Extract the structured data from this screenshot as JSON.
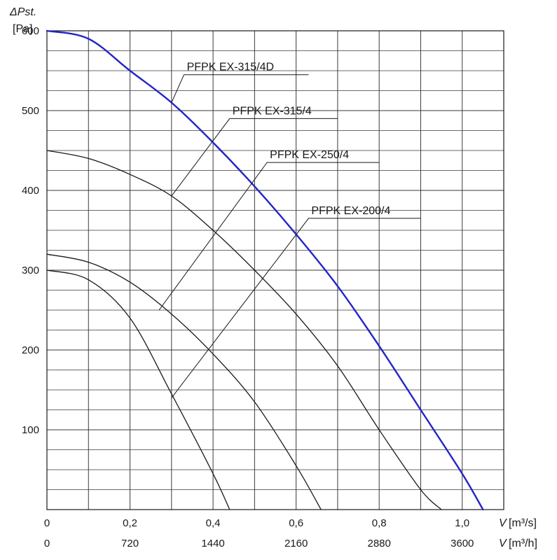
{
  "chart_data": {
    "type": "line",
    "ylabel_symbol": "ΔPst.",
    "ylabel_unit": "[Pa]",
    "xlabel_symbol": "V",
    "xlabel_unit_m3s": "[m³/s]",
    "xlabel_unit_m3h": "[m³/h]",
    "xlim": [
      0,
      1.1
    ],
    "ylim": [
      0,
      600
    ],
    "grid": true,
    "x_ticks_m3s": [
      {
        "value": 0,
        "label": "0"
      },
      {
        "value": 0.2,
        "label": "0,2"
      },
      {
        "value": 0.4,
        "label": "0,4"
      },
      {
        "value": 0.6,
        "label": "0,6"
      },
      {
        "value": 0.8,
        "label": "0,8"
      },
      {
        "value": 1.0,
        "label": "1,0"
      }
    ],
    "x_ticks_m3h": [
      {
        "value": 0,
        "label": "0"
      },
      {
        "value": 0.2,
        "label": "720"
      },
      {
        "value": 0.4,
        "label": "1440"
      },
      {
        "value": 0.6,
        "label": "2160"
      },
      {
        "value": 0.8,
        "label": "2880"
      },
      {
        "value": 1.0,
        "label": "3600"
      }
    ],
    "y_ticks": [
      {
        "value": 100,
        "label": "100"
      },
      {
        "value": 200,
        "label": "200"
      },
      {
        "value": 300,
        "label": "300"
      },
      {
        "value": 400,
        "label": "400"
      },
      {
        "value": 500,
        "label": "500"
      },
      {
        "value": 600,
        "label": "600"
      }
    ],
    "series": [
      {
        "name": "PFPK EX-315/4D",
        "color": "#2424c8",
        "points": [
          [
            0,
            600
          ],
          [
            0.1,
            590
          ],
          [
            0.2,
            550
          ],
          [
            0.3,
            510
          ],
          [
            0.4,
            460
          ],
          [
            0.5,
            405
          ],
          [
            0.6,
            345
          ],
          [
            0.7,
            280
          ],
          [
            0.8,
            205
          ],
          [
            0.9,
            125
          ],
          [
            1.0,
            45
          ],
          [
            1.05,
            0
          ]
        ]
      },
      {
        "name": "PFPK EX-315/4",
        "color": "#1a1a1a",
        "points": [
          [
            0,
            450
          ],
          [
            0.1,
            440
          ],
          [
            0.2,
            420
          ],
          [
            0.3,
            393
          ],
          [
            0.4,
            350
          ],
          [
            0.5,
            300
          ],
          [
            0.6,
            245
          ],
          [
            0.7,
            180
          ],
          [
            0.8,
            100
          ],
          [
            0.9,
            25
          ],
          [
            0.95,
            0
          ]
        ]
      },
      {
        "name": "PFPK EX-250/4",
        "color": "#1a1a1a",
        "points": [
          [
            0,
            320
          ],
          [
            0.1,
            310
          ],
          [
            0.2,
            285
          ],
          [
            0.3,
            245
          ],
          [
            0.4,
            195
          ],
          [
            0.5,
            135
          ],
          [
            0.6,
            55
          ],
          [
            0.66,
            0
          ]
        ]
      },
      {
        "name": "PFPK EX-200/4",
        "color": "#1a1a1a",
        "points": [
          [
            0,
            300
          ],
          [
            0.1,
            288
          ],
          [
            0.2,
            240
          ],
          [
            0.3,
            145
          ],
          [
            0.4,
            45
          ],
          [
            0.44,
            0
          ]
        ]
      }
    ],
    "annotations": [
      {
        "series": 0,
        "text": "PFPK EX-315/4D",
        "anchor": [
          0.3,
          510
        ],
        "elbow": [
          0.33,
          545
        ],
        "label_end": [
          0.63,
          545
        ]
      },
      {
        "series": 1,
        "text": "PFPK EX-315/4",
        "anchor": [
          0.3,
          393
        ],
        "elbow": [
          0.44,
          490
        ],
        "label_end": [
          0.7,
          490
        ]
      },
      {
        "series": 2,
        "text": "PFPK EX-250/4",
        "anchor": [
          0.27,
          250
        ],
        "elbow": [
          0.53,
          435
        ],
        "label_end": [
          0.8,
          435
        ]
      },
      {
        "series": 3,
        "text": "PFPK EX-200/4",
        "anchor": [
          0.3,
          140
        ],
        "elbow": [
          0.63,
          365
        ],
        "label_end": [
          0.9,
          365
        ]
      }
    ]
  }
}
